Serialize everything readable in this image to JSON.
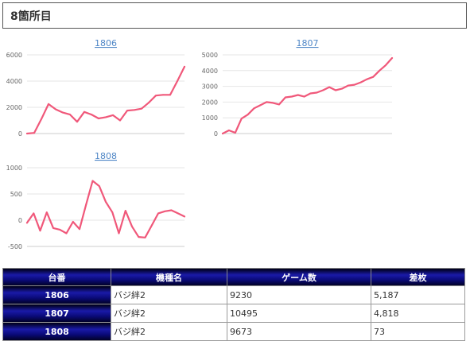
{
  "header": {
    "title": "8箇所目"
  },
  "chart_data": [
    {
      "type": "line",
      "title": "1806",
      "ylim": [
        0,
        6000
      ],
      "yticks": [
        "6000",
        "4000",
        "2000",
        "0"
      ],
      "ytick_values": [
        6000,
        4000,
        2000,
        0
      ],
      "grid": true,
      "color": "#f0587a",
      "values": [
        0,
        50,
        1100,
        2250,
        1850,
        1600,
        1450,
        900,
        1650,
        1450,
        1150,
        1250,
        1400,
        1000,
        1750,
        1800,
        1900,
        2350,
        2900,
        2950,
        2950,
        4000,
        5100
      ]
    },
    {
      "type": "line",
      "title": "1807",
      "ylim": [
        0,
        5000
      ],
      "yticks": [
        "5000",
        "4000",
        "3000",
        "2000",
        "1000",
        "0"
      ],
      "ytick_values": [
        5000,
        4000,
        3000,
        2000,
        1000,
        0
      ],
      "grid": true,
      "color": "#f0587a",
      "values": [
        0,
        200,
        50,
        950,
        1200,
        1600,
        1800,
        2000,
        1950,
        1850,
        2300,
        2350,
        2450,
        2350,
        2550,
        2600,
        2750,
        2950,
        2750,
        2850,
        3050,
        3100,
        3250,
        3450,
        3600,
        4000,
        4350,
        4800
      ]
    },
    {
      "type": "line",
      "title": "1808",
      "ylim": [
        -500,
        1000
      ],
      "yticks": [
        "1000",
        "500",
        "0",
        "-500"
      ],
      "ytick_values": [
        1000,
        500,
        0,
        -500
      ],
      "grid": true,
      "color": "#f0587a",
      "values": [
        -50,
        130,
        -200,
        150,
        -150,
        -180,
        -250,
        -30,
        -170,
        300,
        750,
        650,
        350,
        150,
        -250,
        180,
        -120,
        -320,
        -330,
        -100,
        130,
        170,
        190,
        130,
        70
      ]
    }
  ],
  "table": {
    "headers": [
      "台番",
      "機種名",
      "ゲーム数",
      "差枚"
    ],
    "rows": [
      {
        "no": "1806",
        "machine": "バジ絆2",
        "games": "9230",
        "diff": "5,187"
      },
      {
        "no": "1807",
        "machine": "バジ絆2",
        "games": "10495",
        "diff": "4,818"
      },
      {
        "no": "1808",
        "machine": "バジ絆2",
        "games": "9673",
        "diff": "73"
      }
    ]
  }
}
